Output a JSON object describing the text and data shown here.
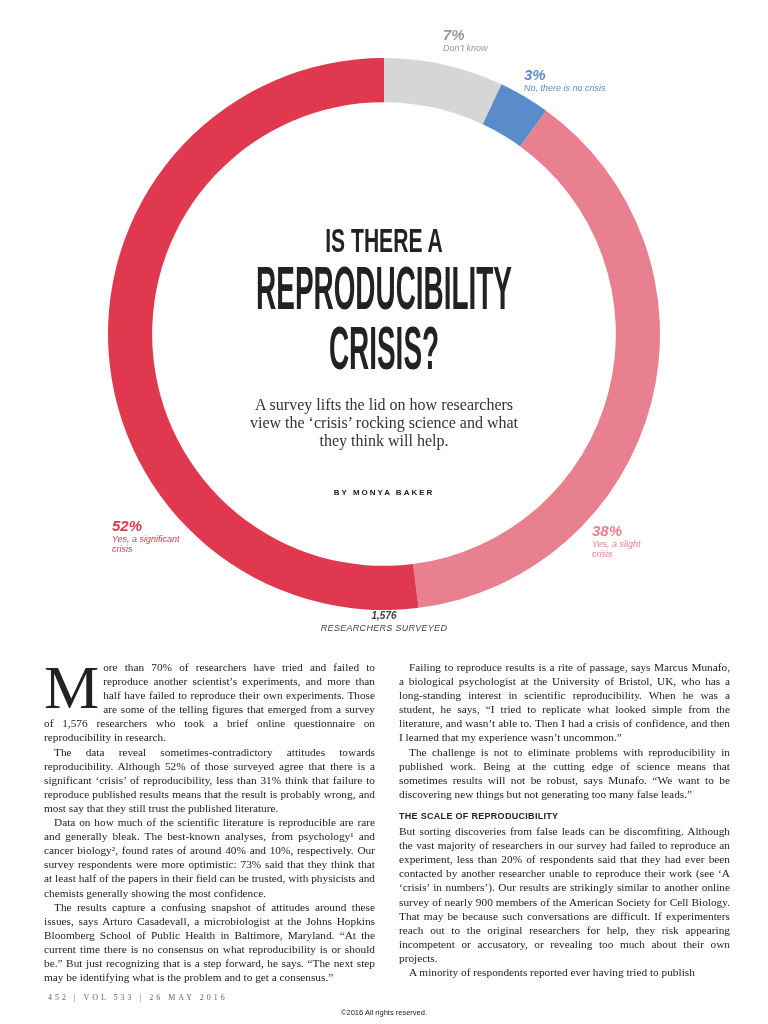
{
  "chart_data": {
    "type": "donut",
    "title": "IS THERE A\nREPRODUCIBILITY\nCRISIS?",
    "subtitle": "A survey lifts the lid on how researchers view the ‘crisis’ rocking science and what they think will help.",
    "categories": [
      "Don’t know",
      "No, there is no crisis",
      "Yes, a slight crisis",
      "Yes, a significant crisis"
    ],
    "values": [
      7,
      3,
      38,
      52
    ],
    "colors": [
      "#d6d6d6",
      "#5a8ccb",
      "#e9808f",
      "#e0394f"
    ],
    "value_labels": [
      "7%",
      "3%",
      "38%",
      "52%"
    ],
    "annotations": [
      "BY MONYA BAKER",
      "1,576",
      "RESEARCHERS SURVEYED",
      "More than 70% of researchers have tried and failed to reproduce another scientist’s experiments, and more than half have failed to reproduce their own experiments. Those are some of the telling figures that emerged from a survey of 1,576 researchers who took a brief online questionnaire on reproducibility in research.",
      "The data reveal sometimes-contradictory attitudes towards reproducibility. Although 52% of those surveyed agree that there is a significant ‘crisis’ of reproducibility, less than 31% think that failure to reproduce published results means that the result is probably wrong, and most say that they still trust the published literature.",
      "Data on how much of the scientific literature is reproducible are rare and generally bleak. The best-known analyses, from psychology¹ and cancer biology², found rates of around 40% and 10%, respectively. Our survey respondents were more optimistic: 73% said that they think that at least half of the papers in their field can be trusted, with physicists and chemists generally showing the most confidence.",
      "The results capture a confusing snapshot of attitudes around these issues, says Arturo Casadevall, a microbiologist at the Johns Hopkins Bloomberg School of Public Health in Baltimore, Maryland. “At the current time there is no consensus on what reproducibility is or should be.” But just recognizing that is a step forward, he says. “The next step may be identifying what is the problem and to get a consensus.”",
      "Failing to reproduce results is a rite of passage, says Marcus Munafo, a biological psychologist at the University of Bristol, UK, who has a long-standing interest in scientific reproducibility. When he was a student, he says, “I tried to replicate what looked simple from the literature, and wasn’t able to. Then I had a crisis of confidence, and then I learned that my experience wasn’t uncommon.”",
      "The challenge is not to eliminate problems with reproducibility in published work. Being at the cutting edge of science means that sometimes results will not be robust, says Munafo. “We want to be discovering new things but not generating too many false leads.”",
      "THE SCALE OF REPRODUCIBILITY",
      "But sorting discoveries from false leads can be discomfiting. Although the vast majority of researchers in our survey had failed to reproduce an experiment, less than 20% of respondents said that they had ever been contacted by another researcher unable to reproduce their work (see ‘A ‘crisis’ in numbers’). Our results are strikingly similar to another online survey of nearly 900 members of the American Society for Cell Biology. That may be because such conversations are difficult. If experimenters reach out to the original researchers for help, they risk appearing incompetent or accusatory, or revealing too much about their own projects.",
      "A minority of respondents reported ever having tried to publish",
      "452 | VOL 533 | 26 MAY 2016",
      "©2016 All rights reserved."
    ]
  }
}
